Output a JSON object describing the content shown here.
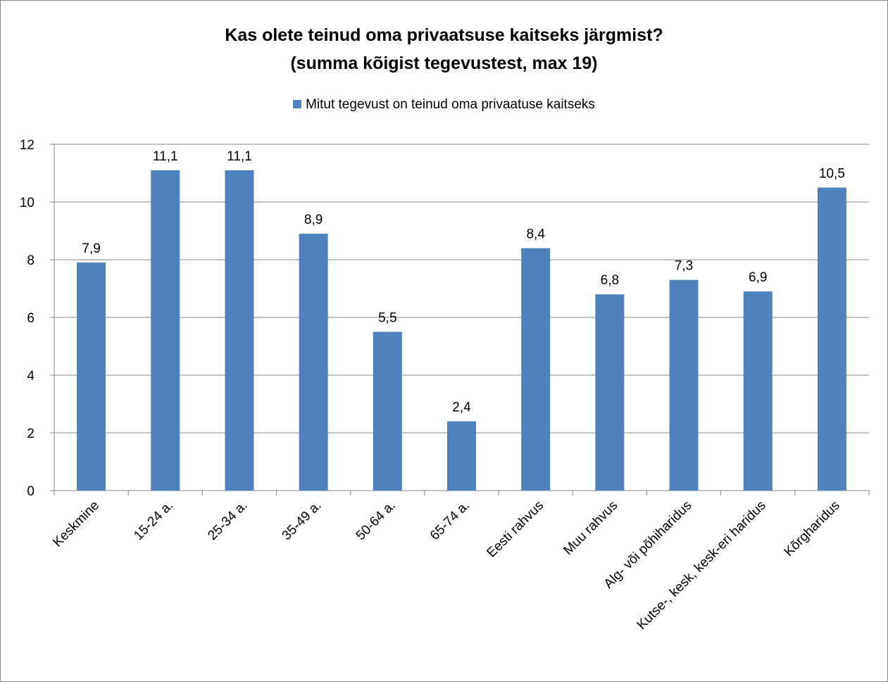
{
  "chart_data": {
    "type": "bar",
    "title": "Kas olete teinud oma privaatsuse kaitseks järgmist?",
    "subtitle": "(summa kõigist tegevustest, max 19)",
    "legend_position": "top",
    "grid": true,
    "ylim": [
      0,
      12
    ],
    "y_ticks": [
      0,
      2,
      4,
      6,
      8,
      10,
      12
    ],
    "categories": [
      "Keskmine",
      "15-24 a.",
      "25-34 a.",
      "35-49 a.",
      "50-64 a.",
      "65-74 a.",
      "Eesti rahvus",
      "Muu rahvus",
      "Alg- või põhiharidus",
      "Kutse-, kesk, kesk-eri haridus",
      "Kõrgharidus"
    ],
    "series": [
      {
        "name": "Mitut tegevust on teinud oma privaatuse kaitseks",
        "color": "#4f81bd",
        "values": [
          7.9,
          11.1,
          11.1,
          8.9,
          5.5,
          2.4,
          8.4,
          6.8,
          7.3,
          6.9,
          10.5
        ],
        "labels": [
          "7,9",
          "11,1",
          "11,1",
          "8,9",
          "5,5",
          "2,4",
          "8,4",
          "6,8",
          "7,3",
          "6,9",
          "10,5"
        ]
      }
    ]
  }
}
